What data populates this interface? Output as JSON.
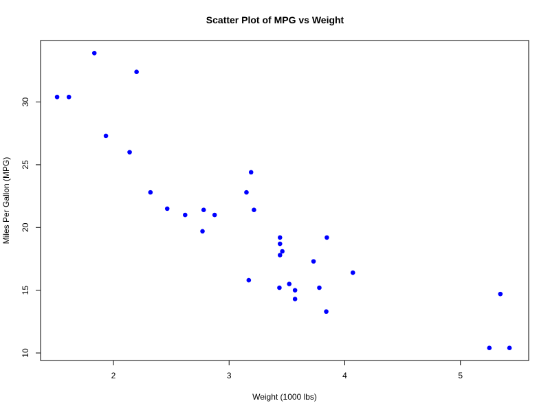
{
  "chart_data": {
    "type": "scatter",
    "title": "Scatter Plot of MPG vs Weight",
    "xlabel": "Weight (1000 lbs)",
    "ylabel": "Miles Per Gallon (MPG)",
    "xlim": [
      1.37,
      5.59
    ],
    "ylim": [
      9.4,
      34.9
    ],
    "xticks": [
      2,
      3,
      4,
      5
    ],
    "yticks": [
      10,
      15,
      20,
      25,
      30
    ],
    "grid": false,
    "point_color": "#0000ff",
    "points": [
      {
        "x": 2.62,
        "y": 21.0
      },
      {
        "x": 2.875,
        "y": 21.0
      },
      {
        "x": 2.32,
        "y": 22.8
      },
      {
        "x": 3.215,
        "y": 21.4
      },
      {
        "x": 3.44,
        "y": 18.7
      },
      {
        "x": 3.46,
        "y": 18.1
      },
      {
        "x": 3.57,
        "y": 14.3
      },
      {
        "x": 3.19,
        "y": 24.4
      },
      {
        "x": 3.15,
        "y": 22.8
      },
      {
        "x": 3.44,
        "y": 19.2
      },
      {
        "x": 3.44,
        "y": 17.8
      },
      {
        "x": 4.07,
        "y": 16.4
      },
      {
        "x": 3.73,
        "y": 17.3
      },
      {
        "x": 3.78,
        "y": 15.2
      },
      {
        "x": 5.25,
        "y": 10.4
      },
      {
        "x": 5.424,
        "y": 10.4
      },
      {
        "x": 5.345,
        "y": 14.7
      },
      {
        "x": 2.2,
        "y": 32.4
      },
      {
        "x": 1.615,
        "y": 30.4
      },
      {
        "x": 1.835,
        "y": 33.9
      },
      {
        "x": 2.465,
        "y": 21.5
      },
      {
        "x": 3.52,
        "y": 15.5
      },
      {
        "x": 3.435,
        "y": 15.2
      },
      {
        "x": 3.84,
        "y": 13.3
      },
      {
        "x": 3.845,
        "y": 19.2
      },
      {
        "x": 1.935,
        "y": 27.3
      },
      {
        "x": 2.14,
        "y": 26.0
      },
      {
        "x": 1.513,
        "y": 30.4
      },
      {
        "x": 3.17,
        "y": 15.8
      },
      {
        "x": 2.77,
        "y": 19.7
      },
      {
        "x": 3.57,
        "y": 15.0
      },
      {
        "x": 2.78,
        "y": 21.4
      }
    ]
  }
}
